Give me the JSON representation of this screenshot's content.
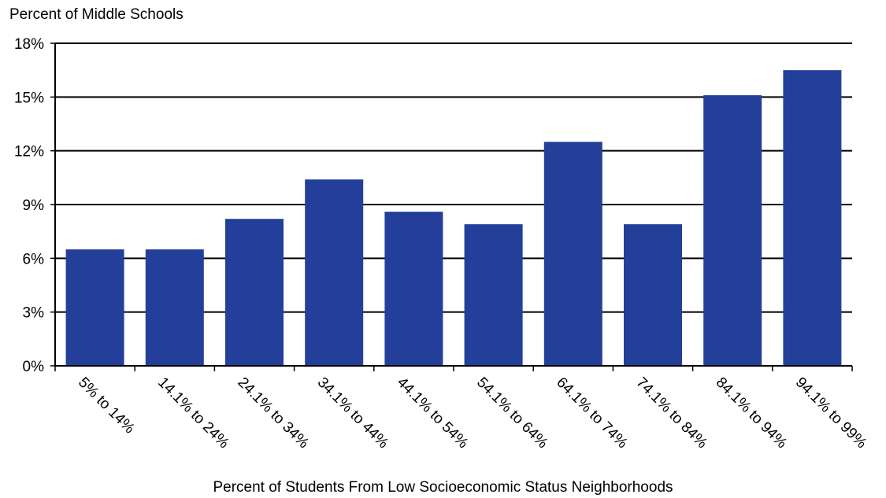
{
  "chart_data": {
    "type": "bar",
    "ylabel": "Percent of Middle Schools",
    "xlabel": "Percent of Students From Low Socioeconomic Status Neighborhoods",
    "categories": [
      "5% to 14%",
      "14.1% to 24%",
      "24.1% to 34%",
      "34.1% to 44%",
      "44.1% to 54%",
      "54.1% to 64%",
      "64.1% to 74%",
      "74.1% to 84%",
      "84.1% to 94%",
      "94.1% to 99%"
    ],
    "values": [
      6.5,
      6.5,
      8.2,
      10.4,
      8.6,
      7.9,
      12.5,
      7.9,
      15.1,
      16.5
    ],
    "ylim": [
      0,
      18
    ],
    "yticks": [
      0,
      3,
      6,
      9,
      12,
      15,
      18
    ],
    "ytick_labels": [
      "0%",
      "3%",
      "6%",
      "9%",
      "12%",
      "15%",
      "18%"
    ],
    "grid": true,
    "bar_color": "#233f99"
  }
}
